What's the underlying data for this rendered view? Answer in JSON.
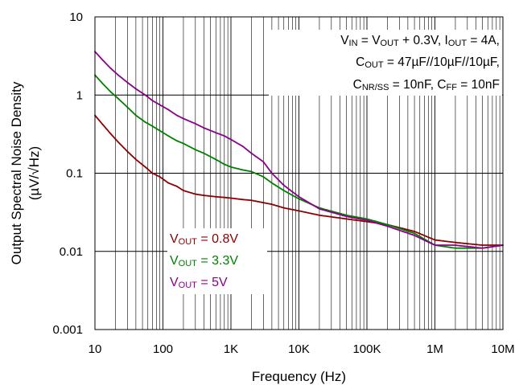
{
  "chart_data": {
    "type": "line",
    "x_scale": "log",
    "y_scale": "log",
    "xlabel": "Frequency (Hz)",
    "ylabel_line1": "Output Spectral Noise Density",
    "ylabel_line2": "(µV/√Hz)",
    "xlim": [
      10,
      10000000
    ],
    "ylim": [
      0.001,
      10
    ],
    "grid": true,
    "x_ticks": [
      10,
      100,
      1000,
      10000,
      100000,
      1000000,
      10000000
    ],
    "x_tick_labels": [
      "10",
      "100",
      "1K",
      "10K",
      "100K",
      "1M",
      "10M"
    ],
    "y_ticks": [
      0.001,
      0.01,
      0.1,
      1,
      10
    ],
    "y_tick_labels": [
      "0.001",
      "0.01",
      "0.1",
      "1",
      "10"
    ],
    "annotation": {
      "line1": [
        {
          "t": "V"
        },
        {
          "t": "IN",
          "sub": true
        },
        {
          "t": " = V"
        },
        {
          "t": "OUT",
          "sub": true
        },
        {
          "t": " + 0.3V, I"
        },
        {
          "t": "OUT",
          "sub": true
        },
        {
          "t": " = 4A,"
        }
      ],
      "line2": [
        {
          "t": "C"
        },
        {
          "t": "OUT",
          "sub": true
        },
        {
          "t": " = 47µF//10µF//10µF,"
        }
      ],
      "line3": [
        {
          "t": "C"
        },
        {
          "t": "NR/SS",
          "sub": true
        },
        {
          "t": " = 10nF, C"
        },
        {
          "t": "FF",
          "sub": true
        },
        {
          "t": " = 10nF"
        }
      ]
    },
    "legend_position": "lower-left",
    "series": [
      {
        "name_main": "V",
        "name_sub": "OUT",
        "name_tail": " = 0.8V",
        "color": "#8b0000",
        "x": [
          10,
          13,
          17,
          22,
          30,
          40,
          55,
          70,
          90,
          120,
          160,
          200,
          300,
          400,
          600,
          800,
          1000,
          1500,
          2000,
          3000,
          4000,
          6000,
          10000,
          20000,
          50000,
          100000,
          200000,
          500000,
          1000000,
          2000000,
          5000000,
          10000000
        ],
        "y": [
          0.55,
          0.42,
          0.32,
          0.25,
          0.19,
          0.15,
          0.12,
          0.1,
          0.09,
          0.075,
          0.068,
          0.06,
          0.054,
          0.052,
          0.05,
          0.049,
          0.048,
          0.046,
          0.045,
          0.042,
          0.04,
          0.036,
          0.033,
          0.029,
          0.026,
          0.024,
          0.022,
          0.018,
          0.014,
          0.013,
          0.012,
          0.012
        ]
      },
      {
        "name_main": "V",
        "name_sub": "OUT",
        "name_tail": " = 3.3V",
        "color": "#008000",
        "x": [
          10,
          13,
          17,
          22,
          30,
          40,
          55,
          70,
          90,
          120,
          160,
          200,
          300,
          400,
          600,
          800,
          1000,
          1500,
          2000,
          3000,
          4000,
          6000,
          10000,
          20000,
          50000,
          100000,
          200000,
          500000,
          1000000,
          2000000,
          5000000,
          10000000
        ],
        "y": [
          1.8,
          1.4,
          1.1,
          0.9,
          0.7,
          0.55,
          0.45,
          0.4,
          0.35,
          0.3,
          0.26,
          0.24,
          0.2,
          0.18,
          0.15,
          0.13,
          0.12,
          0.11,
          0.105,
          0.09,
          0.075,
          0.06,
          0.047,
          0.036,
          0.029,
          0.026,
          0.022,
          0.017,
          0.012,
          0.011,
          0.011,
          0.012
        ]
      },
      {
        "name_main": "V",
        "name_sub": "OUT",
        "name_tail": " = 5V",
        "color": "#8b008b",
        "x": [
          10,
          13,
          17,
          22,
          30,
          40,
          55,
          70,
          90,
          120,
          160,
          200,
          300,
          400,
          600,
          800,
          1000,
          1500,
          2000,
          3000,
          4000,
          6000,
          10000,
          20000,
          50000,
          100000,
          200000,
          500000,
          1000000,
          2000000,
          5000000,
          10000000
        ],
        "y": [
          3.6,
          2.8,
          2.2,
          1.8,
          1.45,
          1.2,
          1.0,
          0.85,
          0.75,
          0.65,
          0.55,
          0.5,
          0.43,
          0.38,
          0.33,
          0.3,
          0.27,
          0.22,
          0.18,
          0.14,
          0.1,
          0.07,
          0.05,
          0.035,
          0.028,
          0.025,
          0.021,
          0.016,
          0.012,
          0.012,
          0.011,
          0.012
        ]
      }
    ]
  }
}
